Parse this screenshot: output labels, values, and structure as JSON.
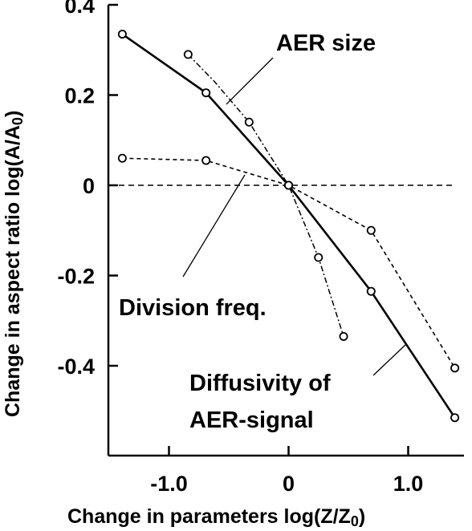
{
  "chart_data": {
    "type": "line",
    "xlabel": "Change in parameters log(Z/Z",
    "xlabel_sub": "0",
    "xlabel_end": ")",
    "ylabel": "Change in aspect ratio log(A/A",
    "ylabel_sub": "0",
    "ylabel_end": ")",
    "xlim": [
      -1.5,
      1.5
    ],
    "ylim": [
      -0.6,
      0.4
    ],
    "xticks": [
      {
        "value": -1.0,
        "label": "-1.0"
      },
      {
        "value": 0,
        "label": "0"
      },
      {
        "value": 1.0,
        "label": "1.0"
      }
    ],
    "yticks": [
      {
        "value": 0.4,
        "label": "0.4"
      },
      {
        "value": 0.2,
        "label": "0.2"
      },
      {
        "value": 0,
        "label": "0"
      },
      {
        "value": -0.2,
        "label": "-0.2"
      },
      {
        "value": -0.4,
        "label": "-0.4"
      }
    ],
    "reference_line_y": 0,
    "series": [
      {
        "name": "AER size",
        "style": "dashdot",
        "points": [
          [
            -0.84,
            0.29
          ],
          [
            -0.62,
            0.23
          ],
          [
            -0.33,
            0.14
          ],
          [
            0,
            0
          ],
          [
            0.25,
            -0.16
          ],
          [
            0.46,
            -0.335
          ]
        ],
        "markers": [
          [
            -0.84,
            0.29
          ],
          [
            -0.33,
            0.14
          ],
          [
            0,
            0
          ],
          [
            0.25,
            -0.16
          ],
          [
            0.46,
            -0.335
          ]
        ]
      },
      {
        "name": "Division freq.",
        "style": "dotted",
        "points": [
          [
            -1.39,
            0.06
          ],
          [
            -0.69,
            0.055
          ],
          [
            0,
            0
          ],
          [
            0.69,
            -0.1
          ],
          [
            1.39,
            -0.405
          ]
        ],
        "markers": [
          [
            -1.39,
            0.06
          ],
          [
            -0.69,
            0.055
          ],
          [
            0,
            0
          ],
          [
            0.69,
            -0.1
          ],
          [
            1.39,
            -0.405
          ]
        ]
      },
      {
        "name": "Diffusivity of AER-signal",
        "style": "solid",
        "points": [
          [
            -1.39,
            0.335
          ],
          [
            -0.69,
            0.205
          ],
          [
            0,
            0
          ],
          [
            0.69,
            -0.235
          ],
          [
            1.39,
            -0.515
          ]
        ],
        "markers": [
          [
            -1.39,
            0.335
          ],
          [
            -0.69,
            0.205
          ],
          [
            0,
            0
          ],
          [
            0.69,
            -0.235
          ],
          [
            1.39,
            -0.515
          ]
        ]
      }
    ],
    "annotations": [
      {
        "text": "AER size"
      },
      {
        "text": "Division freq."
      },
      {
        "text": "Diffusivity of"
      },
      {
        "text": "AER-signal"
      }
    ]
  }
}
